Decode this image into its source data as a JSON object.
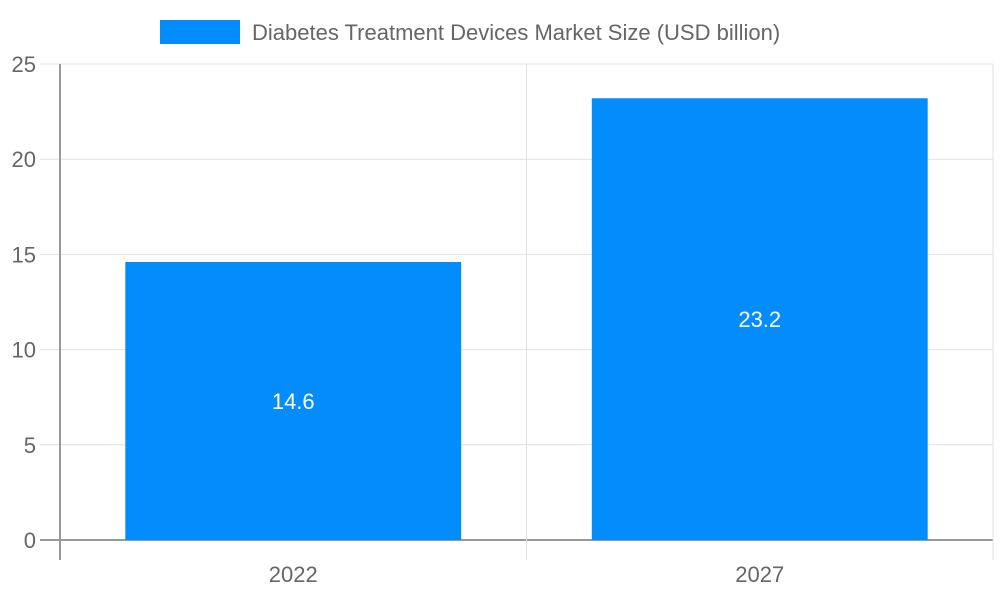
{
  "chart_data": {
    "type": "bar",
    "title": "",
    "xlabel": "",
    "ylabel": "",
    "categories": [
      "2022",
      "2027"
    ],
    "series": [
      {
        "name": "Diabetes Treatment Devices Market Size (USD billion)",
        "values": [
          14.6,
          23.2
        ],
        "color": "#038cfc"
      }
    ],
    "data_labels": [
      "14.6",
      "23.2"
    ],
    "ylim": [
      0,
      25
    ],
    "yticks": [
      0,
      5,
      10,
      15,
      20,
      25
    ],
    "grid": true,
    "legend_position": "top"
  }
}
